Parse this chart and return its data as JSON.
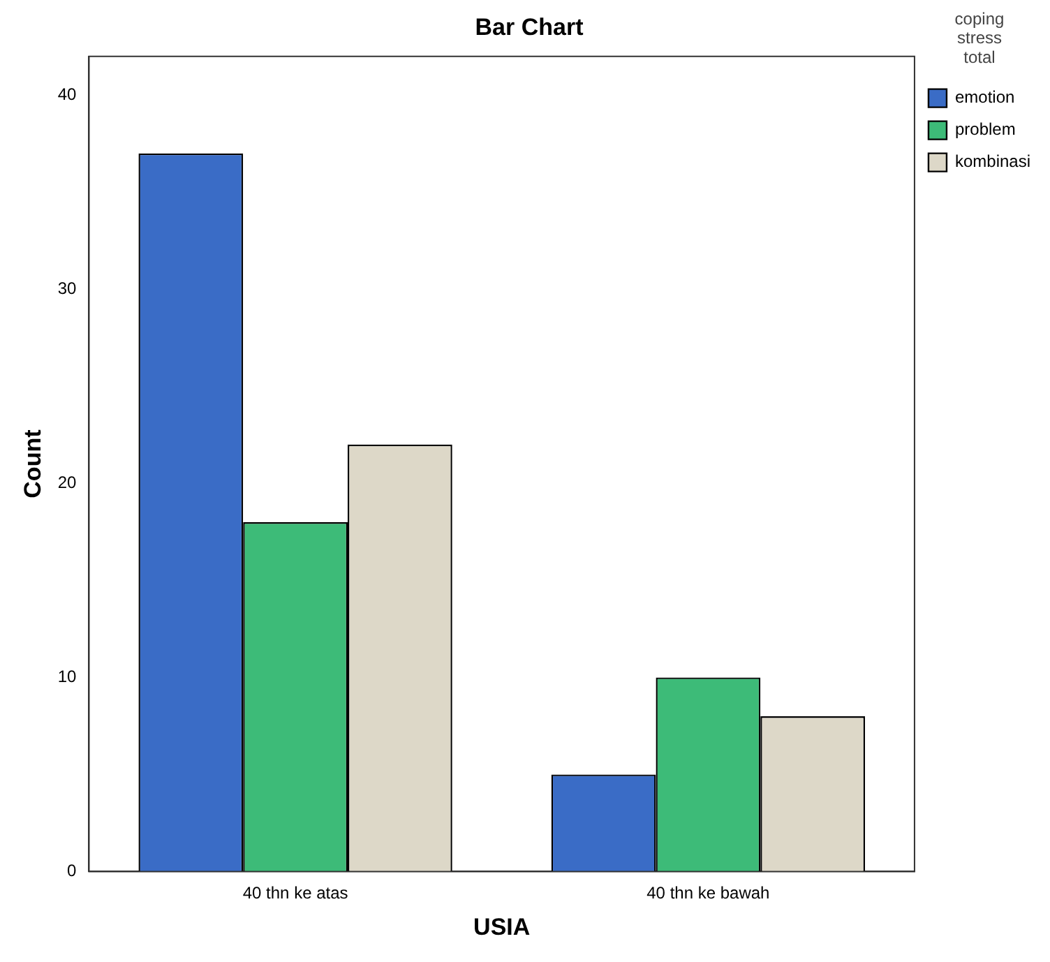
{
  "chart_data": {
    "type": "bar",
    "title": "Bar Chart",
    "xlabel": "USIA",
    "ylabel": "Count",
    "legend_title": "coping stress total",
    "categories": [
      "40 thn ke atas",
      "40 thn ke bawah"
    ],
    "series": [
      {
        "name": "emotion",
        "color": "#3a6cc6",
        "values": [
          37,
          5
        ]
      },
      {
        "name": "problem",
        "color": "#3dbb78",
        "values": [
          18,
          10
        ]
      },
      {
        "name": "kombinasi",
        "color": "#ddd8c8",
        "values": [
          22,
          8
        ]
      }
    ],
    "ylim": [
      0,
      42
    ],
    "yticks": [
      0,
      10,
      20,
      30,
      40
    ],
    "grid": false,
    "legend": "top right"
  }
}
